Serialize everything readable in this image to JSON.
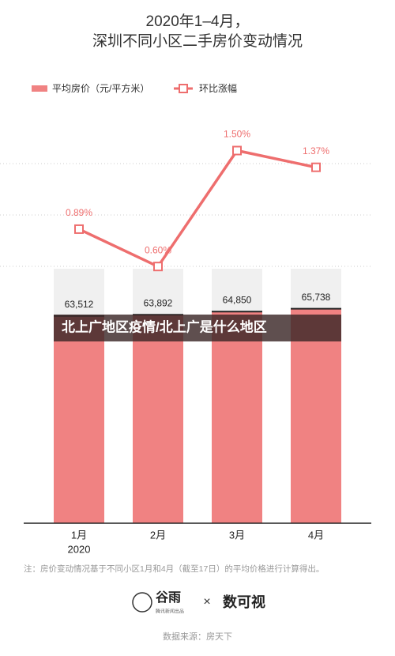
{
  "chart_data": {
    "type": "bar_line",
    "title": "2020年1–4月，",
    "subtitle": "深圳不同小区二手房价变动情况",
    "categories": [
      "1月",
      "2月",
      "3月",
      "4月"
    ],
    "year_label": "2020",
    "series": [
      {
        "name": "平均房价（元/平方米）",
        "type": "bar",
        "color": "#f08282",
        "values": [
          63512,
          63892,
          64850,
          65738
        ],
        "value_labels": [
          "63,512",
          "63,892",
          "64,850",
          "65,738"
        ]
      },
      {
        "name": "环比涨幅",
        "type": "line",
        "axis": "y2",
        "color": "#ee6e6e",
        "values": [
          0.89,
          0.6,
          1.5,
          1.37
        ],
        "value_labels": [
          "0.89%",
          "0.60%",
          "1.50%",
          "1.37%"
        ]
      }
    ],
    "ylim": [
      0,
      70000
    ],
    "y2lim": [
      0,
      2
    ],
    "note": "注：房价变动情况基于不同小区1月和4月（截至17日）的平均价格进行计算得出。",
    "logo_left": "谷雨",
    "logo_left_sub": "腾讯新闻出品",
    "logo_cross": "×",
    "logo_right": "数可视",
    "source": "数据来源：房天下",
    "overlay_banner": "北上广地区疫情/北上广是什么地区"
  }
}
